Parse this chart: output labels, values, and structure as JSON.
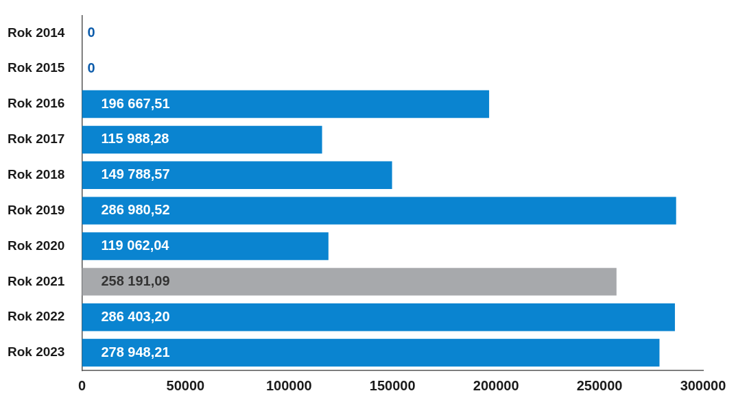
{
  "chart_data": {
    "type": "bar",
    "orientation": "horizontal",
    "categories": [
      "Rok 2014",
      "Rok 2015",
      "Rok 2016",
      "Rok 2017",
      "Rok 2018",
      "Rok 2019",
      "Rok 2020",
      "Rok 2021",
      "Rok 2022",
      "Rok 2023"
    ],
    "values": [
      0,
      0,
      196667.51,
      115988.28,
      149788.57,
      286980.52,
      119062.04,
      258191.09,
      286403.2,
      278948.21
    ],
    "value_labels": [
      "0",
      "0",
      "196 667,51",
      "115 988,28",
      "149 788,57",
      "286 980,52",
      "119 062,04",
      "258 191,09",
      "286 403,20",
      "278 948,21"
    ],
    "colors": [
      "#0d5cab",
      "#0d5cab",
      "#0a84d0",
      "#0a84d0",
      "#0a84d0",
      "#0a84d0",
      "#0a84d0",
      "#a7a9ac",
      "#0a84d0",
      "#0a84d0"
    ],
    "xlim": [
      0,
      300000
    ],
    "xticks": [
      0,
      50000,
      100000,
      150000,
      200000,
      250000,
      300000
    ],
    "grid": false,
    "legend": false
  }
}
